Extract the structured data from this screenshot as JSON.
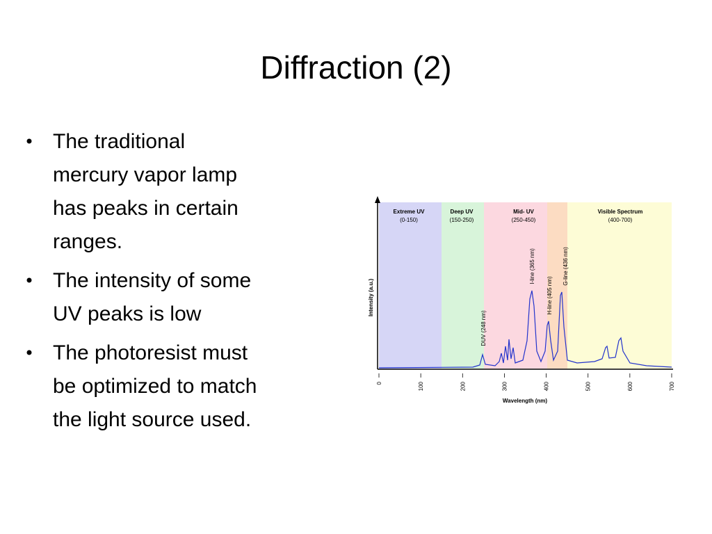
{
  "slide": {
    "title": "Diffraction (2)",
    "bullets": [
      [
        "The traditional",
        "mercury vapor lamp",
        "has peaks in certain",
        "ranges."
      ],
      [
        "The intensity of some",
        "UV peaks is low"
      ],
      [
        "The photoresist must",
        "be optimized to match",
        "the light source used."
      ]
    ],
    "figure": {
      "regions": [
        {
          "name": "Extreme UV",
          "range": "(0-150)"
        },
        {
          "name": "Deep UV",
          "range": "(150-250)"
        },
        {
          "name": "Mid- UV",
          "range": "(250-450)"
        },
        {
          "name": "Visible Spectrum",
          "range": "(400-700)"
        }
      ],
      "peak_labels": [
        "DUV (248 nm)",
        "I-line (365 nm)",
        "H-line (405 nm)",
        "G-line (436 nm)"
      ],
      "y_label": "Intensity (a.u.)",
      "x_label": "Wavelength (nm)",
      "xticks": [
        0,
        100,
        200,
        300,
        400,
        500,
        600,
        700
      ]
    }
  }
}
